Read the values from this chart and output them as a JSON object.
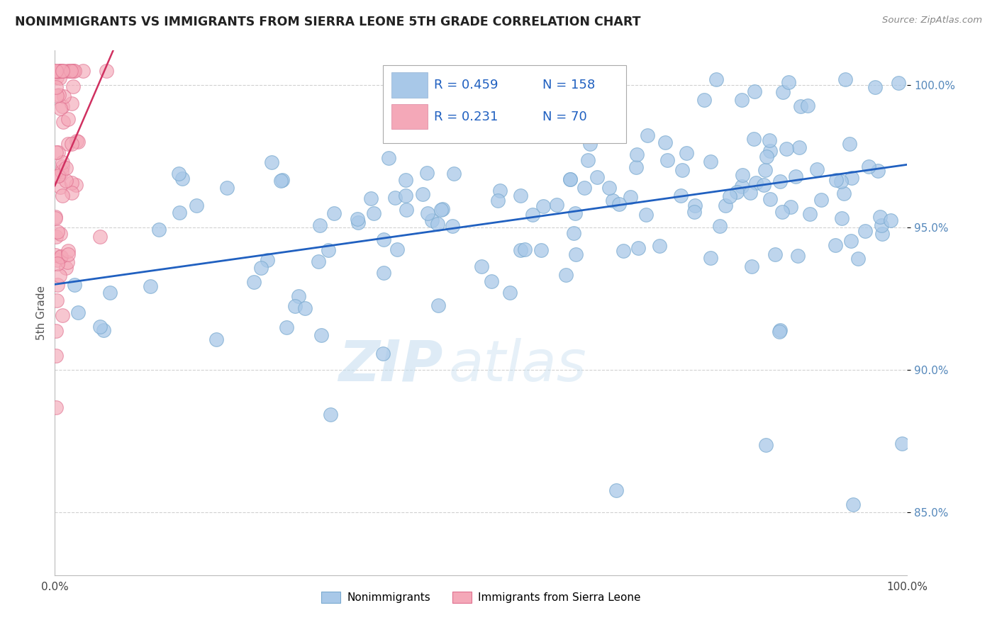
{
  "title": "NONIMMIGRANTS VS IMMIGRANTS FROM SIERRA LEONE 5TH GRADE CORRELATION CHART",
  "source": "Source: ZipAtlas.com",
  "ylabel": "5th Grade",
  "watermark_zip": "ZIP",
  "watermark_atlas": "atlas",
  "legend_blue_r": "0.459",
  "legend_blue_n": "158",
  "legend_pink_r": "0.231",
  "legend_pink_n": "70",
  "blue_color": "#a8c8e8",
  "blue_edge_color": "#7aaad0",
  "pink_color": "#f4a8b8",
  "pink_edge_color": "#e07090",
  "blue_line_color": "#2060c0",
  "pink_line_color": "#d03060",
  "xlim": [
    0.0,
    1.0
  ],
  "ylim": [
    0.828,
    1.012
  ],
  "yticks": [
    0.85,
    0.9,
    0.95,
    1.0
  ],
  "ytick_labels": [
    "85.0%",
    "90.0%",
    "95.0%",
    "100.0%"
  ],
  "background_color": "#ffffff",
  "grid_color": "#cccccc",
  "title_color": "#222222",
  "axis_label_color": "#555555",
  "tick_color": "#5588bb"
}
